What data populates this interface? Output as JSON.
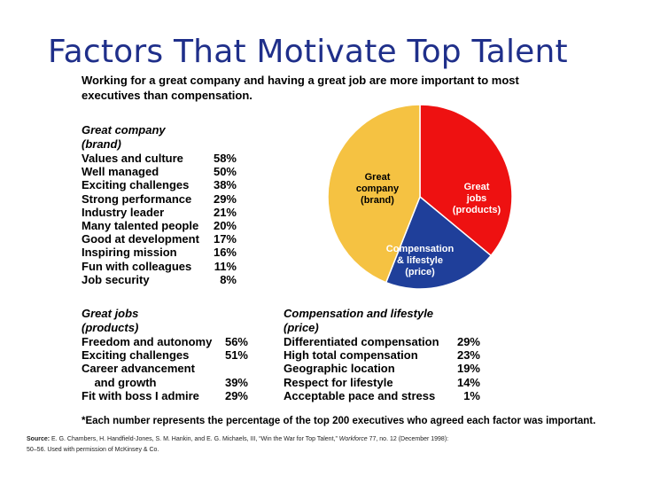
{
  "slide_title": "Factors That Motivate Top Talent",
  "subtitle": "Working for a great company and having a great job are more important to most executives than compensation.",
  "chart_data": [
    {
      "type": "pie",
      "slices": [
        {
          "label_lines": [
            "Great",
            "jobs",
            "(products)"
          ],
          "color": "#ee1111",
          "share": 0.36
        },
        {
          "label_lines": [
            "Compensation",
            "& lifestyle",
            "(price)"
          ],
          "color": "#1f3f9a",
          "share": 0.2
        },
        {
          "label_lines": [
            "Great",
            "company",
            "(brand)"
          ],
          "color": "#f5c242",
          "share": 0.44
        }
      ]
    },
    {
      "type": "table",
      "title_lines": [
        "Great company",
        "(brand)"
      ],
      "rows": [
        {
          "label": "Values and culture",
          "value": "58%"
        },
        {
          "label": "Well managed",
          "value": "50%"
        },
        {
          "label": "Exciting challenges",
          "value": "38%"
        },
        {
          "label": "Strong performance",
          "value": "29%"
        },
        {
          "label": "Industry leader",
          "value": "21%"
        },
        {
          "label": "Many talented people",
          "value": "20%"
        },
        {
          "label": "Good at development",
          "value": "17%"
        },
        {
          "label": "Inspiring mission",
          "value": "16%"
        },
        {
          "label": "Fun with colleagues",
          "value": "11%"
        },
        {
          "label": "Job security",
          "value": "8%"
        }
      ]
    },
    {
      "type": "table",
      "title_lines": [
        "Great jobs",
        "(products)"
      ],
      "rows": [
        {
          "label": "Freedom and autonomy",
          "value": "56%"
        },
        {
          "label": "Exciting challenges",
          "value": "51%"
        },
        {
          "label": "Career advancement",
          "value": ""
        },
        {
          "label": "  and growth",
          "value": "39%"
        },
        {
          "label": "Fit with boss I admire",
          "value": "29%"
        }
      ]
    },
    {
      "type": "table",
      "title_lines": [
        "Compensation and lifestyle",
        "(price)"
      ],
      "rows": [
        {
          "label": "Differentiated compensation",
          "value": "29%"
        },
        {
          "label": "High total compensation",
          "value": "23%"
        },
        {
          "label": "Geographic location",
          "value": "19%"
        },
        {
          "label": "Respect for lifestyle",
          "value": "14%"
        },
        {
          "label": "Acceptable pace and stress",
          "value": "1%"
        }
      ]
    }
  ],
  "footnote": "*Each number represents the percentage of the top 200 executives who agreed each factor was important.",
  "source": {
    "label": "Source:",
    "text_before": "E. G. Chambers, H. Handfield-Jones, S. M. Hankin, and E. G. Michaels, III, “Win the War for Top Talent,”",
    "journal": "Workforce",
    "text_after": "77, no. 12 (December 1998):",
    "line2": "50–56. Used with permission of McKinsey & Co."
  }
}
